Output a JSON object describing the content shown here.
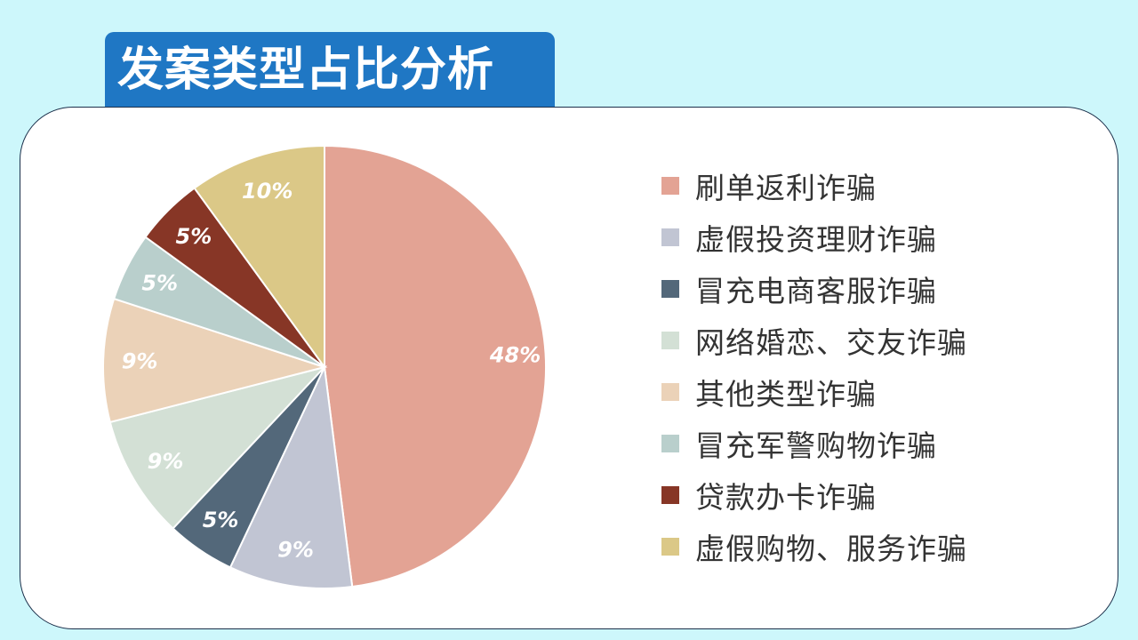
{
  "title": "发案类型占比分析",
  "chart_data": {
    "type": "pie",
    "slices": [
      {
        "name": "刷单返利诈骗",
        "value": 48,
        "label": "48%",
        "color": "#e3a394"
      },
      {
        "name": "虚假投资理财诈骗",
        "value": 9,
        "label": "9%",
        "color": "#c1c5d3"
      },
      {
        "name": "冒充电商客服诈骗",
        "value": 5,
        "label": "5%",
        "color": "#53687a"
      },
      {
        "name": "网络婚恋、交友诈骗",
        "value": 9,
        "label": "9%",
        "color": "#d3e0d5"
      },
      {
        "name": "其他类型诈骗",
        "value": 9,
        "label": "9%",
        "color": "#ebd2b8"
      },
      {
        "name": "冒充军警购物诈骗",
        "value": 5,
        "label": "5%",
        "color": "#b9cfcc"
      },
      {
        "name": "贷款办卡诈骗",
        "value": 5,
        "label": "5%",
        "color": "#873626"
      },
      {
        "name": "虚假购物、服务诈骗",
        "value": 10,
        "label": "10%",
        "color": "#dbc887"
      }
    ],
    "legend_position": "right"
  }
}
